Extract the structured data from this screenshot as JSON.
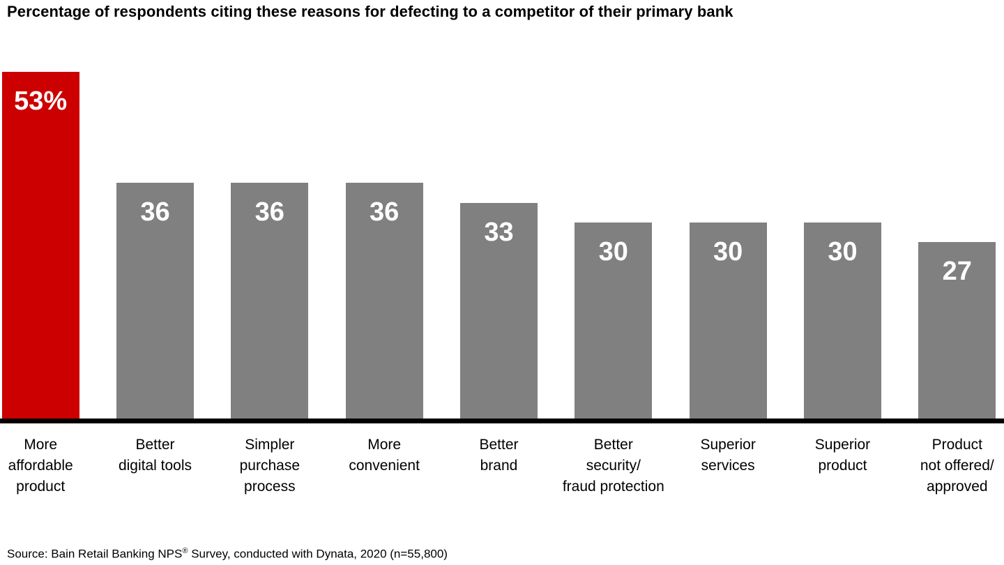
{
  "title": "Percentage of respondents citing these reasons for defecting to a competitor of their primary bank",
  "source": {
    "prefix": "Source: Bain Retail Banking NPS",
    "registered_mark": "®",
    "suffix": " Survey, conducted with Dynata, 2020 (n=55,800)"
  },
  "colors": {
    "highlight_bar": "#CC0000",
    "default_bar": "#808080",
    "value_label": "#FFFFFF",
    "axis": "#000000",
    "text": "#000000"
  },
  "chart_data": {
    "type": "bar",
    "title": "Percentage of respondents citing these reasons for defecting to a competitor of their primary bank",
    "xlabel": "",
    "ylabel": "Percentage of respondents",
    "ylim": [
      0,
      53
    ],
    "grid": false,
    "legend": false,
    "unit": "percent",
    "categories": [
      "More affordable product",
      "Better digital tools",
      "Simpler purchase process",
      "More convenient",
      "Better brand",
      "Better security/ fraud protection",
      "Superior services",
      "Superior product",
      "Product not offered/ approved"
    ],
    "values": [
      53,
      36,
      36,
      36,
      33,
      30,
      30,
      30,
      27
    ],
    "bars": [
      {
        "value": 53,
        "label": "53%",
        "highlight": true,
        "lines": [
          "More",
          "affordable",
          "product"
        ]
      },
      {
        "value": 36,
        "label": "36",
        "highlight": false,
        "lines": [
          "Better",
          "digital tools"
        ]
      },
      {
        "value": 36,
        "label": "36",
        "highlight": false,
        "lines": [
          "Simpler",
          "purchase",
          "process"
        ]
      },
      {
        "value": 36,
        "label": "36",
        "highlight": false,
        "lines": [
          "More",
          "convenient"
        ]
      },
      {
        "value": 33,
        "label": "33",
        "highlight": false,
        "lines": [
          "Better",
          "brand"
        ]
      },
      {
        "value": 30,
        "label": "30",
        "highlight": false,
        "lines": [
          "Better",
          "security/",
          "fraud protection"
        ]
      },
      {
        "value": 30,
        "label": "30",
        "highlight": false,
        "lines": [
          "Superior",
          "services"
        ]
      },
      {
        "value": 30,
        "label": "30",
        "highlight": false,
        "lines": [
          "Superior",
          "product"
        ]
      },
      {
        "value": 27,
        "label": "27",
        "highlight": false,
        "lines": [
          "Product",
          "not offered/",
          "approved"
        ]
      }
    ]
  }
}
